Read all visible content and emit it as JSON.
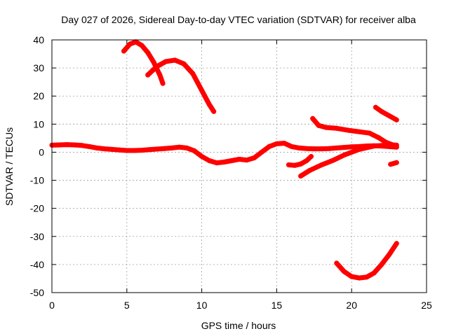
{
  "chart_data": {
    "type": "scatter",
    "title": "Day 027 of 2026, Sidereal Day-to-day VTEC variation (SDTVAR) for receiver alba",
    "xlabel": "GPS time / hours",
    "ylabel": "SDTVAR / TECUs",
    "xlim": [
      0,
      25
    ],
    "ylim": [
      -50,
      40
    ],
    "xticks": [
      0,
      5,
      10,
      15,
      20,
      25
    ],
    "yticks": [
      -50,
      -40,
      -30,
      -20,
      -10,
      0,
      10,
      20,
      30,
      40
    ],
    "grid": true,
    "legend": "none",
    "color": "#ff0000",
    "series": [
      {
        "name": "track-main",
        "x": [
          0,
          0.5,
          1,
          1.5,
          2,
          2.5,
          3,
          3.5,
          4,
          4.5,
          5,
          5.5,
          6,
          6.5,
          7,
          7.5,
          8,
          8.5,
          9,
          9.5,
          10,
          10.5,
          11,
          11.5,
          12,
          12.5,
          13,
          13.5,
          14,
          14.5,
          15,
          15.5,
          16,
          16.5,
          17,
          17.5,
          18,
          18.5,
          19,
          19.5,
          20,
          20.5,
          21,
          21.5,
          22,
          22.5,
          23
        ],
        "y": [
          2.5,
          2.6,
          2.7,
          2.6,
          2.4,
          2.0,
          1.5,
          1.2,
          1.0,
          0.8,
          0.6,
          0.6,
          0.7,
          0.9,
          1.1,
          1.3,
          1.5,
          1.8,
          1.5,
          0.5,
          -1.5,
          -3.0,
          -3.8,
          -3.5,
          -3.0,
          -2.5,
          -2.8,
          -2.0,
          0,
          2.0,
          3.0,
          3.2,
          2.0,
          1.5,
          1.3,
          1.2,
          1.2,
          1.3,
          1.5,
          1.7,
          1.9,
          2.0,
          2.2,
          2.3,
          2.2,
          2.0,
          1.8
        ]
      },
      {
        "name": "track-arc-a",
        "x": [
          4.8,
          5.2,
          5.6,
          6.0,
          6.4,
          6.8,
          7.2,
          7.4
        ],
        "y": [
          36,
          38.5,
          39.3,
          38,
          35.5,
          32,
          27.5,
          24.5
        ]
      },
      {
        "name": "track-arc-b",
        "x": [
          6.4,
          7.0,
          7.6,
          8.2,
          8.8,
          9.4,
          10.0,
          10.5,
          10.8
        ],
        "y": [
          27.5,
          30.5,
          32.3,
          32.8,
          31.5,
          28,
          22,
          17,
          14.5
        ]
      },
      {
        "name": "track-dip-a",
        "x": [
          15.8,
          16.2,
          16.6,
          17.0,
          17.3
        ],
        "y": [
          -4.5,
          -4.7,
          -4.2,
          -3.0,
          -1.5
        ]
      },
      {
        "name": "track-dip-b",
        "x": [
          16.6,
          17.2,
          18.0,
          18.8,
          19.5,
          20.5,
          21.5,
          22.5,
          23.0
        ],
        "y": [
          -8.5,
          -6.5,
          -4.5,
          -2.8,
          -1.0,
          1.0,
          2.2,
          2.6,
          2.5
        ]
      },
      {
        "name": "track-high",
        "x": [
          17.4,
          17.8,
          18.3,
          19.0,
          19.8,
          20.5,
          21.2,
          21.8,
          22.3,
          22.8
        ],
        "y": [
          12,
          9.5,
          8.8,
          8.5,
          7.8,
          7.3,
          6.8,
          5.2,
          3.5,
          2.5
        ]
      },
      {
        "name": "track-late",
        "x": [
          21.6,
          22.0,
          22.5,
          23.0
        ],
        "y": [
          16,
          14.5,
          13,
          11.5
        ]
      },
      {
        "name": "track-late-short",
        "x": [
          22.6,
          23.0
        ],
        "y": [
          -4.3,
          -3.7
        ]
      },
      {
        "name": "track-low",
        "x": [
          19.0,
          19.5,
          20.0,
          20.5,
          21.0,
          21.5,
          22.0,
          22.5,
          23.0
        ],
        "y": [
          -39.5,
          -42.5,
          -44.3,
          -44.8,
          -44.5,
          -43,
          -40,
          -36.5,
          -32.5
        ]
      }
    ]
  }
}
